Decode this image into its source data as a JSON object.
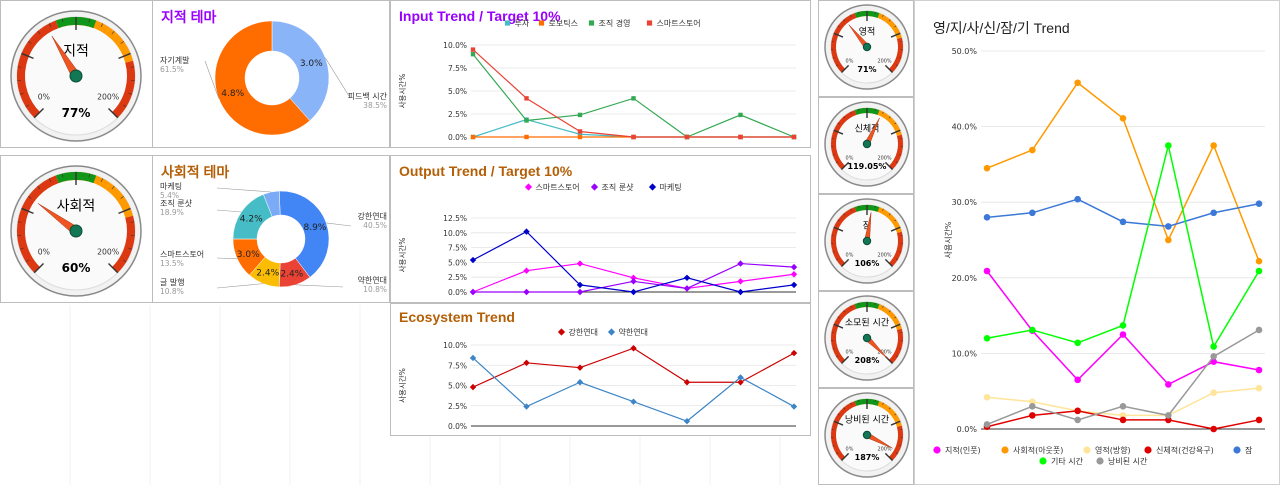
{
  "colors": {
    "purple": "#9900ff",
    "brown": "#b45f06",
    "blue": "#1155cc"
  },
  "gauges_big": [
    {
      "label": "지적",
      "value_text": "77%",
      "value": 77
    },
    {
      "label": "사회적",
      "value_text": "60%",
      "value": 60
    }
  ],
  "gauges_small": [
    {
      "label": "영적",
      "value_text": "71%",
      "value": 71
    },
    {
      "label": "신체적",
      "value_text": "119.05%",
      "value": 119.05
    },
    {
      "label": "잠",
      "value_text": "106%",
      "value": 106
    },
    {
      "label": "소모된 시간",
      "value_text": "208%",
      "value": 208
    },
    {
      "label": "낭비된 시간",
      "value_text": "187%",
      "value": 187
    }
  ],
  "gauge_ticks": {
    "min": "0%",
    "max": "200%"
  },
  "chart_data": [
    {
      "id": "intellectual-pie",
      "type": "pie",
      "title": "지적 테마",
      "slices": [
        {
          "label": "피드백 시간",
          "pct_label": "38.5%",
          "value": 3.0,
          "value_label": "3.0%",
          "color": "#8ab4f8"
        },
        {
          "label": "자기계발",
          "pct_label": "61.5%",
          "value": 4.8,
          "value_label": "4.8%",
          "color": "#ff6d01"
        }
      ]
    },
    {
      "id": "social-pie",
      "type": "pie",
      "title": "사회적 테마",
      "slices": [
        {
          "label": "강한연대",
          "pct_label": "40.5%",
          "value": 8.9,
          "value_label": "8.9%",
          "color": "#4285f4"
        },
        {
          "label": "약한연대",
          "pct_label": "10.8%",
          "value": 2.4,
          "value_label": "2.4%",
          "color": "#ea4335"
        },
        {
          "label": "글 발행",
          "pct_label": "10.8%",
          "value": 2.4,
          "value_label": "2.4%",
          "color": "#fbbc04"
        },
        {
          "label": "스마트스토어",
          "pct_label": "13.5%",
          "value": 3.0,
          "value_label": "3.0%",
          "color": "#ff6d01"
        },
        {
          "label": "조직 룬샷",
          "pct_label": "18.9%",
          "value": 4.2,
          "value_label": "4.2%",
          "color": "#46bdc6"
        },
        {
          "label": "마케팅",
          "pct_label": "5.4%",
          "value": 1.2,
          "value_label": "",
          "color": "#7baaf7"
        }
      ]
    },
    {
      "id": "input-trend",
      "type": "line",
      "title": "Input Trend / Target 10%",
      "ylabel": "사용시간%",
      "ylim": [
        0,
        10
      ],
      "yticks": [
        "0.0%",
        "2.5%",
        "5.0%",
        "7.5%",
        "10.0%"
      ],
      "marker": "square",
      "series": [
        {
          "name": "투자",
          "color": "#46bdc6",
          "values": [
            0,
            1.9,
            0.3,
            0,
            0,
            0,
            0
          ]
        },
        {
          "name": "로보틱스",
          "color": "#ff6d01",
          "values": [
            0,
            0,
            0,
            0,
            0,
            0,
            0
          ]
        },
        {
          "name": "조직 경영",
          "color": "#34a853",
          "values": [
            9.0,
            1.8,
            2.4,
            4.2,
            0,
            2.4,
            0
          ]
        },
        {
          "name": "스마트스토어",
          "color": "#ea4335",
          "values": [
            9.5,
            4.2,
            0.6,
            0,
            0,
            0,
            0
          ]
        }
      ]
    },
    {
      "id": "output-trend",
      "type": "line",
      "title": "Output Trend / Target 10%",
      "ylabel": "사용시간%",
      "ylim": [
        0,
        12.5
      ],
      "yticks": [
        "0.0%",
        "2.5%",
        "5.0%",
        "7.5%",
        "10.0%",
        "12.5%"
      ],
      "marker": "diamond",
      "series": [
        {
          "name": "스마트스토어",
          "color": "#ff00ff",
          "values": [
            0,
            3.6,
            4.8,
            2.4,
            0.6,
            1.8,
            3.0
          ]
        },
        {
          "name": "조직 룬샷",
          "color": "#9900ff",
          "values": [
            0,
            0,
            0,
            1.8,
            0.6,
            4.8,
            4.2
          ]
        },
        {
          "name": "마케팅",
          "color": "#0000cc",
          "values": [
            5.4,
            10.2,
            1.2,
            0,
            2.4,
            0,
            1.2
          ]
        }
      ]
    },
    {
      "id": "ecosystem-trend",
      "type": "line",
      "title": "Ecosystem Trend",
      "ylabel": "사용시간%",
      "ylim": [
        0,
        10
      ],
      "yticks": [
        "0.0%",
        "2.5%",
        "5.0%",
        "7.5%",
        "10.0%"
      ],
      "marker": "diamond",
      "series": [
        {
          "name": "강한연대",
          "color": "#cc0000",
          "values": [
            4.8,
            7.8,
            7.2,
            9.6,
            5.4,
            5.4,
            9.0
          ]
        },
        {
          "name": "약한연대",
          "color": "#3d85c6",
          "values": [
            8.4,
            2.4,
            5.4,
            3.0,
            0.6,
            6.0,
            2.4
          ]
        }
      ]
    },
    {
      "id": "life-trend",
      "type": "line",
      "title": "영/지/사/신/잠/기 Trend",
      "ylabel": "사용시간%",
      "ylim": [
        0,
        50
      ],
      "yticks": [
        "0.0%",
        "10.0%",
        "20.0%",
        "30.0%",
        "40.0%",
        "50.0%"
      ],
      "marker": "circle",
      "series": [
        {
          "name": "지적(인풋)",
          "color": "#ff00ff",
          "values": [
            20.9,
            13.0,
            6.5,
            12.5,
            5.9,
            8.9,
            7.8
          ]
        },
        {
          "name": "사회적(아웃풋)",
          "color": "#ff9900",
          "values": [
            34.5,
            36.9,
            45.8,
            41.1,
            25.0,
            37.5,
            22.2
          ]
        },
        {
          "name": "영적(방향)",
          "color": "#ffe599",
          "values": [
            4.2,
            3.6,
            2.4,
            1.8,
            1.8,
            4.8,
            5.4
          ]
        },
        {
          "name": "신체적(건강욕구)",
          "color": "#e00000",
          "values": [
            0.3,
            1.8,
            2.4,
            1.2,
            1.2,
            0,
            1.2
          ]
        },
        {
          "name": "잠",
          "color": "#3c78d8",
          "values": [
            28.0,
            28.6,
            30.4,
            27.4,
            26.8,
            28.6,
            29.8
          ]
        },
        {
          "name": "기타 시간",
          "color": "#00ff00",
          "values": [
            12.0,
            13.1,
            11.4,
            13.7,
            37.5,
            10.9,
            20.9
          ]
        },
        {
          "name": "낭비된 시간",
          "color": "#999999",
          "values": [
            0.6,
            3.0,
            1.2,
            3.0,
            1.8,
            9.6,
            13.1
          ]
        }
      ]
    }
  ]
}
